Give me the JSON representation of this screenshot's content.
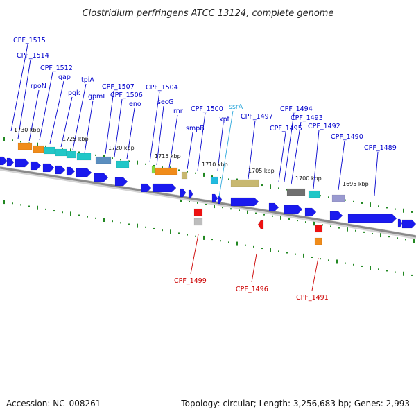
{
  "title": "Clostridium perfringens ATCC 13124, complete genome",
  "footer": {
    "accession": "Accession: NC_008261",
    "topology": "Topology: circular; Length: 3,256,683 bp; Genes: 2,993"
  },
  "colors": {
    "forward_label": "#0000cc",
    "reverse_label": "#cc0000",
    "rna_label": "#33aadd",
    "forward_gene": "#1a1aee",
    "reverse_gene": "#ee1111",
    "backbone": "#888888",
    "tick": "#228822"
  },
  "scale_labels": [
    "1730 kbp",
    "1725 kbp",
    "1720 kbp",
    "1715 kbp",
    "1710 kbp",
    "1705 kbp",
    "1700 kbp",
    "1695 kbp"
  ],
  "forward_labels": [
    "CPF_1515",
    "CPF_1514",
    "CPF_1512",
    "rpoN",
    "gap",
    "pgk",
    "tpiA",
    "gpmI",
    "CPF_1507",
    "CPF_1506",
    "eno",
    "CPF_1504",
    "secG",
    "rnr",
    "CPF_1500",
    "smpB",
    "xpt",
    "CPF_1497",
    "CPF_1495",
    "CPF_1494",
    "CPF_1493",
    "CPF_1492",
    "CPF_1490",
    "CPF_1489"
  ],
  "rna_labels": [
    "ssrA"
  ],
  "reverse_labels": [
    "CPF_1499",
    "CPF_1496",
    "CPF_1491"
  ]
}
